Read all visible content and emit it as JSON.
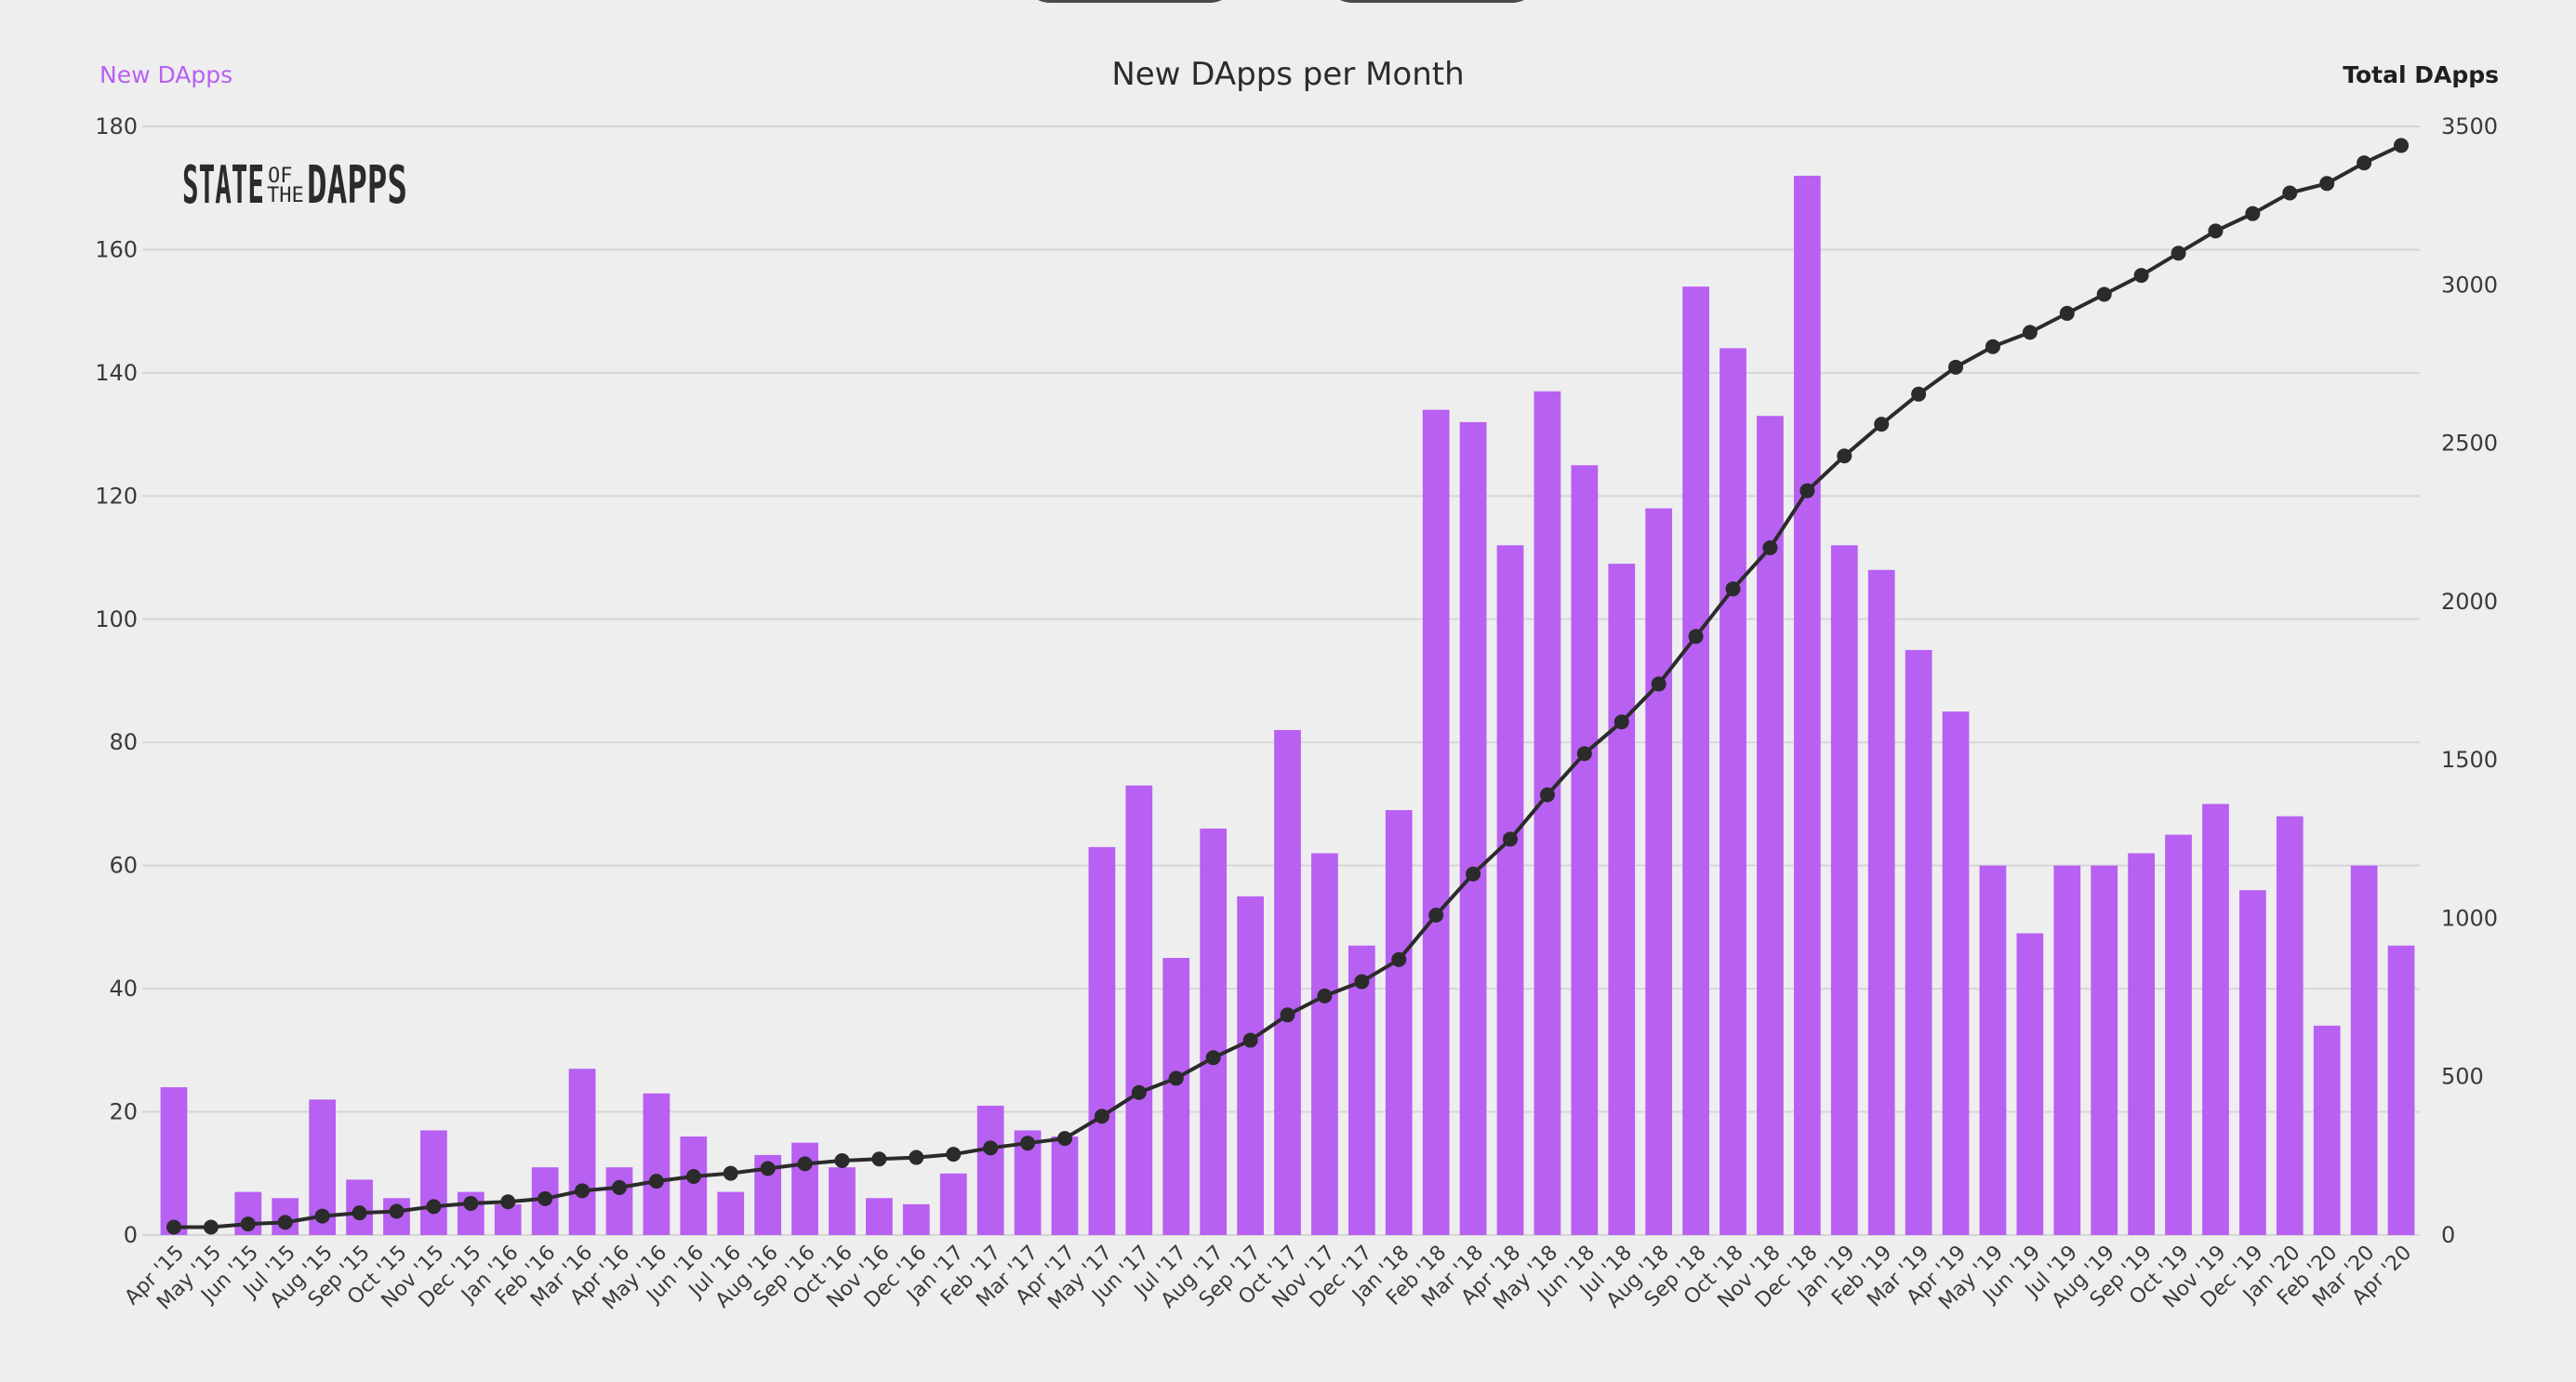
{
  "legend_left": "New DApps",
  "legend_right": "Total DApps",
  "logo": {
    "part1": "STATE",
    "part2a": "OF",
    "part2b": "THE",
    "part3": "DAPPS"
  },
  "colors": {
    "bar": "#b860f2",
    "line": "#2b2b2b",
    "grid": "#d6d6d6",
    "background": "#eeeeee"
  },
  "chart_data": {
    "type": "bar+line",
    "title": "New DApps per Month",
    "categories": [
      "Apr '15",
      "May '15",
      "Jun '15",
      "Jul '15",
      "Aug '15",
      "Sep '15",
      "Oct '15",
      "Nov '15",
      "Dec '15",
      "Jan '16",
      "Feb '16",
      "Mar '16",
      "Apr '16",
      "May '16",
      "Jun '16",
      "Jul '16",
      "Aug '16",
      "Sep '16",
      "Oct '16",
      "Nov '16",
      "Dec '16",
      "Jan '17",
      "Feb '17",
      "Mar '17",
      "Apr '17",
      "May '17",
      "Jun '17",
      "Jul '17",
      "Aug '17",
      "Sep '17",
      "Oct '17",
      "Nov '17",
      "Dec '17",
      "Jan '18",
      "Feb '18",
      "Mar '18",
      "Apr '18",
      "May '18",
      "Jun '18",
      "Jul '18",
      "Aug '18",
      "Sep '18",
      "Oct '18",
      "Nov '18",
      "Dec '18",
      "Jan '19",
      "Feb '19",
      "Mar '19",
      "Apr '19",
      "May '19",
      "Jun '19",
      "Jul '19",
      "Aug '19",
      "Sep '19",
      "Oct '19",
      "Nov '19",
      "Dec '19",
      "Jan '20",
      "Feb '20",
      "Mar '20",
      "Apr '20"
    ],
    "series": [
      {
        "name": "New DApps",
        "axis": "left",
        "type": "bar",
        "values": [
          24,
          0,
          7,
          6,
          22,
          9,
          6,
          17,
          7,
          5,
          11,
          27,
          11,
          23,
          16,
          7,
          13,
          15,
          11,
          6,
          5,
          10,
          21,
          17,
          16,
          63,
          73,
          45,
          66,
          55,
          82,
          62,
          47,
          69,
          134,
          132,
          112,
          137,
          125,
          109,
          118,
          154,
          144,
          133,
          172,
          112,
          108,
          95,
          85,
          60,
          49,
          60,
          60,
          62,
          65,
          70,
          56,
          68,
          34,
          60,
          47
        ]
      },
      {
        "name": "Total DApps",
        "axis": "right",
        "type": "line",
        "values": [
          25,
          25,
          35,
          40,
          60,
          70,
          75,
          90,
          100,
          105,
          115,
          140,
          150,
          170,
          185,
          195,
          210,
          225,
          235,
          240,
          245,
          255,
          275,
          290,
          305,
          375,
          450,
          495,
          560,
          615,
          695,
          755,
          800,
          870,
          1010,
          1140,
          1250,
          1390,
          1520,
          1620,
          1740,
          1890,
          2040,
          2170,
          2350,
          2460,
          2560,
          2655,
          2740,
          2805,
          2850,
          2910,
          2970,
          3030,
          3100,
          3170,
          3225,
          3290,
          3320,
          3385,
          3440
        ]
      }
    ],
    "y_left": {
      "min": 0,
      "max": 180,
      "ticks": [
        0,
        20,
        40,
        60,
        80,
        100,
        120,
        140,
        160,
        180
      ]
    },
    "y_right": {
      "min": 0,
      "max": 3500,
      "ticks": [
        0,
        500,
        1000,
        1500,
        2000,
        2500,
        3000,
        3500
      ]
    },
    "xlabel": "",
    "ylabel_left": "New DApps",
    "ylabel_right": "Total DApps",
    "grid": true
  }
}
